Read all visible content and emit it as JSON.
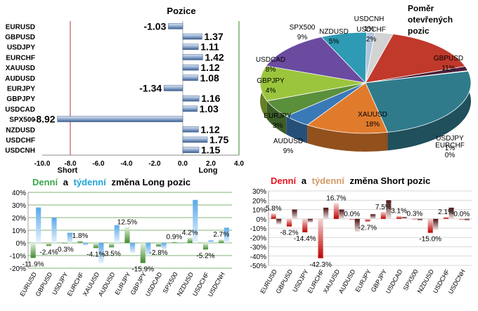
{
  "colors": {
    "positive": "#4f81bd",
    "negative": "#1f3864",
    "long_green": "#3a8a2a",
    "short_red": "#c00000",
    "short_pos": "#7f1f1f",
    "title_blue": "#1fa2d6",
    "title_green": "#3aa648",
    "title_red": "#e8141e",
    "title_orange": "#d59a63"
  },
  "chart_data": [
    {
      "type": "bar",
      "orientation": "horizontal",
      "title": "Pozice",
      "categories": [
        "EURUSD",
        "GBPUSD",
        "USDJPY",
        "EURCHF",
        "XAUUSD",
        "AUDUSD",
        "EURJPY",
        "GBPJPY",
        "USDCAD",
        "SPX500",
        "NZDUSD",
        "USDCHF",
        "USDCNH"
      ],
      "values": [
        -1.03,
        1.37,
        1.11,
        1.42,
        1.12,
        1.08,
        -1.34,
        1.16,
        1.03,
        -8.92,
        1.12,
        1.75,
        1.15
      ],
      "value_labels": [
        "-1.03",
        "1.37",
        "1.11",
        "1.42",
        "1.12",
        "1.08",
        "-1.34",
        "1.16",
        "1.03",
        "-8.92",
        "1.12",
        "1.75",
        "1.15"
      ],
      "xlim": [
        -10,
        4
      ],
      "xticks": [
        "-10.0",
        "-8.0",
        "-6.0",
        "-4.0",
        "-2.0",
        "0.0",
        "2.0",
        "4.0"
      ],
      "short_label": "Short",
      "long_label": "Long"
    },
    {
      "type": "pie",
      "title": "Poměr otevřených pozic",
      "labels": [
        "USDCNH",
        "USDCHF",
        "GBPUSD",
        "USDJPY",
        "EURCHF",
        "XAUUSD",
        "AUDUSD",
        "EURJPY",
        "GBPJPY",
        "USDCAD",
        "SPX500",
        "NZDUSD"
      ],
      "values": [
        1,
        2,
        11,
        1,
        0,
        18,
        9,
        3,
        4,
        8,
        9,
        5
      ],
      "value_labels": [
        "1%",
        "2%",
        "11%",
        "1%",
        "0%",
        "18%",
        "9%",
        "3%",
        "4%",
        "8%",
        "9%",
        "5%"
      ],
      "colors": [
        "#b0c4de",
        "#d3d3d3",
        "#c0392b",
        "#4b1e3a",
        "#8f6b8a",
        "#2f7b8c",
        "#e07b2c",
        "#3a79b8",
        "#5a8f3c",
        "#9bc53d",
        "#6a4ba0",
        "#2e9ab3"
      ]
    },
    {
      "type": "bar",
      "title_parts": [
        "Denní",
        "a",
        "týdenní",
        "změna Long pozic"
      ],
      "categories": [
        "EURUSD",
        "GBPUSD",
        "USDJPY",
        "EURCHF",
        "XAUUSD",
        "AUDUSD",
        "EURJPY",
        "GBPJPY",
        "USDCAD",
        "SPX500",
        "NZDUSD",
        "USDCHF",
        "USDCNH"
      ],
      "daily": [
        -11.9,
        -2.4,
        -0.3,
        1.8,
        -4.1,
        -3.5,
        12.5,
        -15.9,
        -2.8,
        0.9,
        4.2,
        -5.2,
        2.7
      ],
      "weekly": [
        28,
        20,
        8,
        -2,
        -16,
        14,
        -8,
        -10,
        -5,
        0,
        34,
        2,
        12
      ],
      "value_labels": [
        "-11.9%",
        "-2.4%",
        "-0.3%",
        "1.8%",
        "-4.1%",
        "-3.5%",
        "12.5%",
        "-15.9%",
        "-2.8%",
        "0.9%",
        "4.2%",
        "-5.2%",
        "2.7%"
      ],
      "ylim": [
        -20,
        40
      ],
      "yticks": [
        "-20%",
        "-10%",
        "0%",
        "10%",
        "20%",
        "30%",
        "40%"
      ]
    },
    {
      "type": "bar",
      "title_parts": [
        "Denní",
        "a",
        "týdenní",
        "změna Short pozic"
      ],
      "categories": [
        "EURUSD",
        "GBPUSD",
        "USDJPY",
        "EURCHF",
        "XAUUSD",
        "AUDUSD",
        "EURJPY",
        "GBPJPY",
        "USDCAD",
        "SPX500",
        "NZDUSD",
        "USDCHF",
        "USDCNH"
      ],
      "daily": [
        5.8,
        -8.2,
        -14.4,
        -42.3,
        16.7,
        0.0,
        -2.7,
        7.5,
        3.1,
        0.3,
        -15.0,
        2.1,
        0.0
      ],
      "weekly": [
        -6,
        10,
        -4,
        12,
        10,
        -14,
        5,
        20,
        2,
        -2,
        -12,
        12,
        -2
      ],
      "value_labels": [
        "5.8%",
        "-8.2%",
        "-14.4%",
        "-42.3%",
        "16.7%",
        "0.0%",
        "-2.7%",
        "7.5%",
        "3.1%",
        "0.3%",
        "-15.0%",
        "2.1%",
        "0.0%"
      ],
      "ylim": [
        -50,
        30
      ],
      "yticks": [
        "-50%",
        "-40%",
        "-30%",
        "-20%",
        "-10%",
        "0%",
        "10%",
        "20%",
        "30%"
      ]
    }
  ]
}
